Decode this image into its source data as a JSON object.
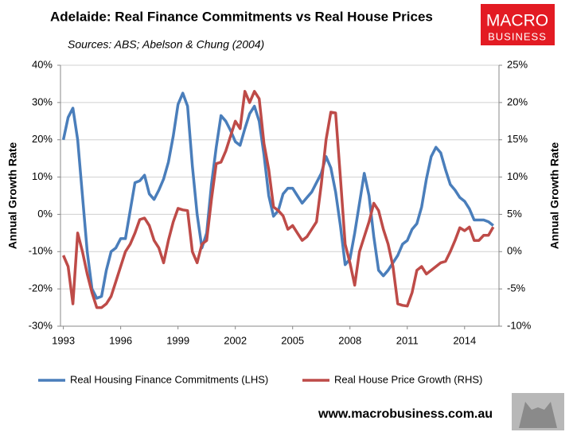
{
  "chart_data": {
    "type": "line",
    "title": "Adelaide: Real Finance Commitments vs Real House Prices",
    "subtitle": "Sources: ABS; Abelson & Chung (2004)",
    "y_label": "Annual Growth Rate",
    "y2_label": "Annual Growth Rate",
    "x": [
      1993,
      1993.25,
      1993.5,
      1993.75,
      1994,
      1994.25,
      1994.5,
      1994.75,
      1995,
      1995.25,
      1995.5,
      1995.75,
      1996,
      1996.25,
      1996.5,
      1996.75,
      1997,
      1997.25,
      1997.5,
      1997.75,
      1998,
      1998.25,
      1998.5,
      1998.75,
      1999,
      1999.25,
      1999.5,
      1999.75,
      2000,
      2000.25,
      2000.5,
      2000.75,
      2001,
      2001.25,
      2001.5,
      2001.75,
      2002,
      2002.25,
      2002.5,
      2002.75,
      2003,
      2003.25,
      2003.5,
      2003.75,
      2004,
      2004.25,
      2004.5,
      2004.75,
      2005,
      2005.25,
      2005.5,
      2005.75,
      2006,
      2006.25,
      2006.5,
      2006.75,
      2007,
      2007.25,
      2007.5,
      2007.75,
      2008,
      2008.25,
      2008.5,
      2008.75,
      2009,
      2009.25,
      2009.5,
      2009.75,
      2010,
      2010.25,
      2010.5,
      2010.75,
      2011,
      2011.25,
      2011.5,
      2011.75,
      2012,
      2012.25,
      2012.5,
      2012.75,
      2013,
      2013.25,
      2013.5,
      2013.75,
      2014,
      2014.25,
      2014.5,
      2014.75,
      2015,
      2015.25,
      2015.5
    ],
    "xlim": [
      1992.85,
      2015.8
    ],
    "xticks": [
      1993,
      1996,
      1999,
      2002,
      2005,
      2008,
      2011,
      2014
    ],
    "ylim": [
      -30,
      40
    ],
    "yticks": [
      {
        "value": -30,
        "label": "-30%"
      },
      {
        "value": -20,
        "label": "-20%"
      },
      {
        "value": -10,
        "label": "-10%"
      },
      {
        "value": 0,
        "label": "0%"
      },
      {
        "value": 10,
        "label": "10%"
      },
      {
        "value": 20,
        "label": "20%"
      },
      {
        "value": 30,
        "label": "30%"
      },
      {
        "value": 40,
        "label": "40%"
      }
    ],
    "y2lim": [
      -10,
      25
    ],
    "y2ticks": [
      {
        "value": -10,
        "label": "-10%"
      },
      {
        "value": -5,
        "label": "-5%"
      },
      {
        "value": 0,
        "label": "0%"
      },
      {
        "value": 5,
        "label": "5%"
      },
      {
        "value": 10,
        "label": "10%"
      },
      {
        "value": 15,
        "label": "15%"
      },
      {
        "value": 20,
        "label": "20%"
      },
      {
        "value": 25,
        "label": "25%"
      }
    ],
    "grid": true,
    "legend": "bottom",
    "series": [
      {
        "name": "Real Housing Finance Commitments (LHS)",
        "color": "#4a7ebb",
        "axis": "y",
        "values": [
          20,
          26,
          28.5,
          20,
          5,
          -10,
          -20,
          -22.5,
          -22,
          -15,
          -10,
          -9,
          -6.5,
          -6.5,
          1,
          8.5,
          9,
          10.5,
          5.5,
          4,
          6.5,
          9.5,
          14,
          21,
          29.5,
          32.5,
          29,
          13,
          0,
          -9,
          -5,
          8,
          18,
          26.5,
          25,
          22.5,
          19.5,
          18.5,
          23,
          27,
          29,
          25,
          16,
          5,
          -0.5,
          1,
          5.5,
          7,
          7,
          5,
          3,
          4.5,
          6,
          8.5,
          11,
          15.5,
          12.5,
          6,
          -3,
          -13.5,
          -12,
          -5,
          3,
          11,
          5,
          -6,
          -15,
          -16.5,
          -15,
          -13,
          -11,
          -8,
          -7,
          -4,
          -2.5,
          2,
          9.5,
          15.5,
          18,
          16.5,
          12,
          8,
          6.5,
          4.5,
          3.5,
          1.5,
          -1.5,
          -1.5,
          -1.5,
          -2,
          -3
        ]
      },
      {
        "name": "Real House Price Growth (RHS)",
        "color": "#be4b48",
        "axis": "y2",
        "values": [
          -0.5,
          -2,
          -7,
          2.5,
          0,
          -3,
          -5.5,
          -7.5,
          -7.5,
          -7,
          -6,
          -4,
          -2,
          0,
          1,
          2.5,
          4.3,
          4.5,
          3.5,
          1.5,
          0.5,
          -1.5,
          1.5,
          4,
          5.8,
          5.6,
          5.5,
          0,
          -1.5,
          1,
          1.5,
          7,
          11.8,
          12,
          13.5,
          15.5,
          17.5,
          16.5,
          21.5,
          20,
          21.5,
          20.5,
          14.5,
          11,
          6,
          5.5,
          4.8,
          3,
          3.5,
          2.5,
          1.5,
          2,
          3,
          4,
          9,
          15,
          18.7,
          18.6,
          10,
          1,
          -1.5,
          -4.5,
          0,
          2,
          4,
          6.5,
          5.5,
          3,
          1,
          -2,
          -7,
          -7.2,
          -7.3,
          -5.5,
          -2.5,
          -2,
          -3,
          -2.5,
          -2,
          -1.5,
          -1.3,
          0,
          1.5,
          3.2,
          2.8,
          3.3,
          1.5,
          1.5,
          2.2,
          2.2,
          3.3
        ]
      }
    ]
  },
  "logo": {
    "line1": "MACRO",
    "line2": "BUSINESS"
  },
  "footer": "www.macrobusiness.com.au"
}
